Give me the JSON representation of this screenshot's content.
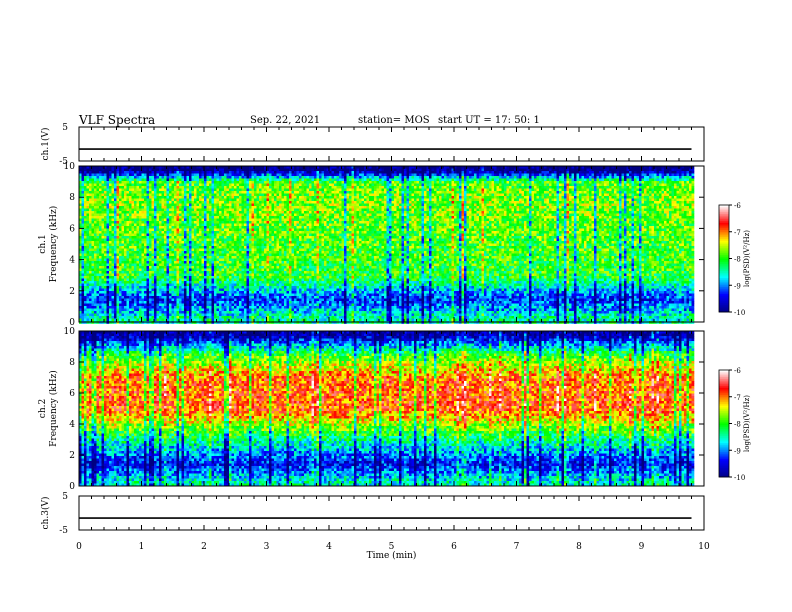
{
  "header": {
    "title": "VLF Spectra",
    "date": "Sep. 22, 2021",
    "station": "station= MOS",
    "start_ut": "start  UT =  17: 50: 1"
  },
  "chart_data": [
    {
      "type": "line",
      "panel": "ch1-waveform",
      "ylabel": "ch.1(V)",
      "ylim": [
        -5,
        5
      ],
      "yticks": [
        "5",
        "-5"
      ],
      "x": [
        0,
        9.8
      ],
      "series": [
        {
          "values": [
            -1.5,
            -1.5
          ]
        }
      ]
    },
    {
      "type": "heatmap",
      "panel": "ch1-spectrogram",
      "ylabel": "ch.1 Frequency (kHz)",
      "ylim": [
        0,
        10
      ],
      "yticks": [
        "0",
        "2",
        "4",
        "6",
        "8",
        "10"
      ],
      "xlim": [
        0,
        10
      ],
      "data_extent_min": 9.8,
      "colorbar": {
        "label": "log(PSD)(V²/Hz)",
        "range": [
          -10,
          -6
        ],
        "ticks": [
          "-6",
          "-7",
          "-8",
          "-9",
          "-10"
        ]
      },
      "band_profile": [
        {
          "freq": 0.3,
          "level": -8.4
        },
        {
          "freq": 1.5,
          "level": -9.3
        },
        {
          "freq": 3.0,
          "level": -8.0
        },
        {
          "freq": 5.0,
          "level": -7.9
        },
        {
          "freq": 7.5,
          "level": -7.7
        },
        {
          "freq": 9.0,
          "level": -7.8
        },
        {
          "freq": 9.8,
          "level": -10.0
        }
      ]
    },
    {
      "type": "heatmap",
      "panel": "ch2-spectrogram",
      "ylabel": "ch.2 Frequency (kHz)",
      "ylim": [
        0,
        10
      ],
      "yticks": [
        "0",
        "2",
        "4",
        "6",
        "8",
        "10"
      ],
      "xlim": [
        0,
        10
      ],
      "data_extent_min": 9.8,
      "colorbar": {
        "label": "log(PSD)(V²/Hz)",
        "range": [
          -10,
          -6
        ],
        "ticks": [
          "-6",
          "-7",
          "-8",
          "-9",
          "-10"
        ]
      },
      "band_profile": [
        {
          "freq": 0.3,
          "level": -8.5
        },
        {
          "freq": 1.5,
          "level": -9.4
        },
        {
          "freq": 3.0,
          "level": -8.4
        },
        {
          "freq": 5.0,
          "level": -6.8
        },
        {
          "freq": 7.0,
          "level": -6.9
        },
        {
          "freq": 8.5,
          "level": -7.9
        },
        {
          "freq": 9.8,
          "level": -9.8
        }
      ]
    },
    {
      "type": "line",
      "panel": "ch3-waveform",
      "ylabel": "ch.3(V)",
      "ylim": [
        -5,
        5
      ],
      "yticks": [
        "5",
        "-5"
      ],
      "x": [
        0,
        9.8
      ],
      "series": [
        {
          "values": [
            -1.5,
            -1.5
          ]
        }
      ]
    }
  ],
  "xaxis": {
    "label": "Time (min)",
    "range": [
      0,
      10
    ],
    "ticks": [
      "0",
      "1",
      "2",
      "3",
      "4",
      "5",
      "6",
      "7",
      "8",
      "9",
      "10"
    ]
  },
  "colormap": [
    "#000080",
    "#0000ff",
    "#00ffff",
    "#00ff00",
    "#ffff00",
    "#ff0000",
    "#ffffff"
  ]
}
